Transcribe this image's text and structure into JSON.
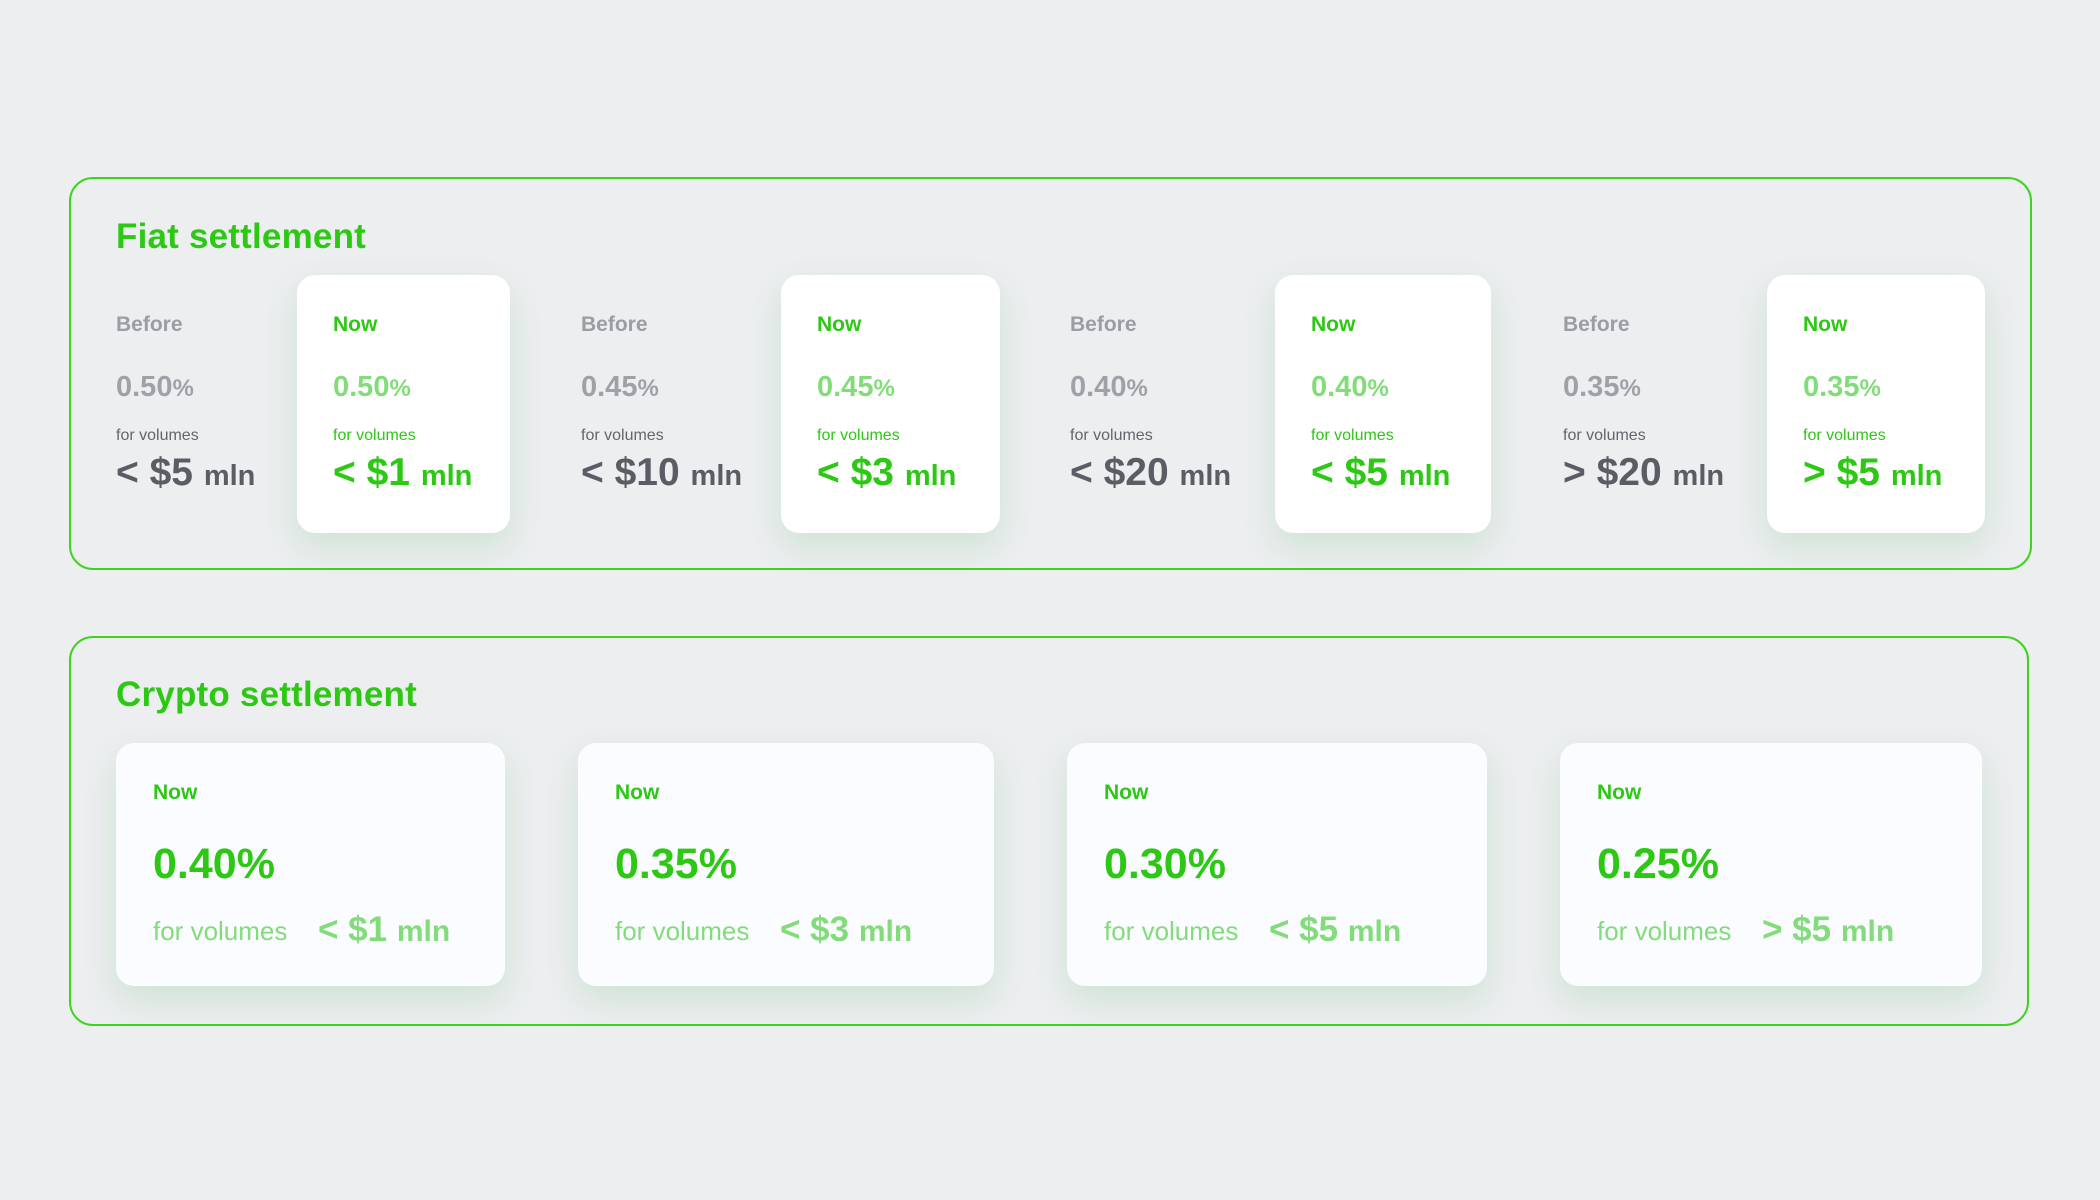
{
  "fiat": {
    "title": "Fiat settlement",
    "tiers": [
      {
        "before": {
          "label": "Before",
          "rate": "0.50",
          "pct_sign": "%",
          "for_volumes": "for volumes",
          "amount": "< $5",
          "unit": "mln"
        },
        "now": {
          "label": "Now",
          "rate": "0.50",
          "pct_sign": "%",
          "for_volumes": "for volumes",
          "amount": "< $1",
          "unit": "mln"
        }
      },
      {
        "before": {
          "label": "Before",
          "rate": "0.45",
          "pct_sign": "%",
          "for_volumes": "for volumes",
          "amount": "< $10",
          "unit": "mln"
        },
        "now": {
          "label": "Now",
          "rate": "0.45",
          "pct_sign": "%",
          "for_volumes": "for volumes",
          "amount": "< $3",
          "unit": "mln"
        }
      },
      {
        "before": {
          "label": "Before",
          "rate": "0.40",
          "pct_sign": "%",
          "for_volumes": "for volumes",
          "amount": "< $20",
          "unit": "mln"
        },
        "now": {
          "label": "Now",
          "rate": "0.40",
          "pct_sign": "%",
          "for_volumes": "for volumes",
          "amount": "< $5",
          "unit": "mln"
        }
      },
      {
        "before": {
          "label": "Before",
          "rate": "0.35",
          "pct_sign": "%",
          "for_volumes": "for volumes",
          "amount": "> $20",
          "unit": "mln"
        },
        "now": {
          "label": "Now",
          "rate": "0.35",
          "pct_sign": "%",
          "for_volumes": "for volumes",
          "amount": "> $5",
          "unit": "mln"
        }
      }
    ]
  },
  "crypto": {
    "title": "Crypto settlement",
    "cards": [
      {
        "label": "Now",
        "rate": "0.40%",
        "for_volumes": "for volumes",
        "amount": "< $1",
        "unit": "mln"
      },
      {
        "label": "Now",
        "rate": "0.35%",
        "for_volumes": "for volumes",
        "amount": "< $3",
        "unit": "mln"
      },
      {
        "label": "Now",
        "rate": "0.30%",
        "for_volumes": "for volumes",
        "amount": "< $5",
        "unit": "mln"
      },
      {
        "label": "Now",
        "rate": "0.25%",
        "for_volumes": "for volumes",
        "amount": "> $5",
        "unit": "mln"
      }
    ]
  },
  "colors": {
    "accent": "#2cc814",
    "accent_light": "#83dc7a",
    "border": "#3fd321",
    "muted": "#9a9ea4",
    "dark_text": "#5a5e64",
    "background": "#eceef0"
  }
}
